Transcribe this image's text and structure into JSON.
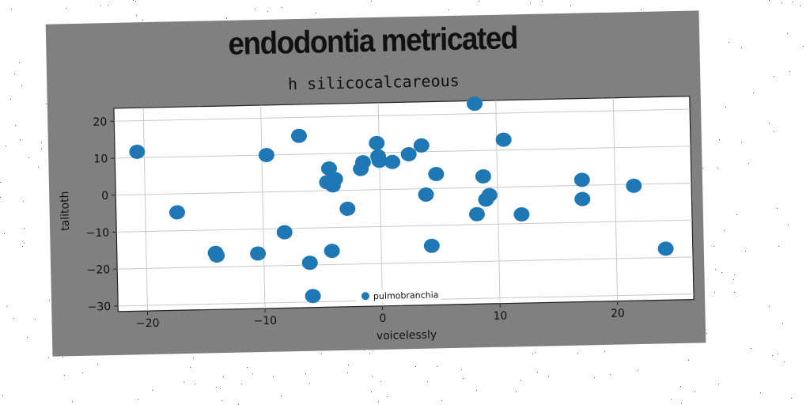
{
  "chart_data": {
    "type": "scatter",
    "title": "endodontia metricated",
    "subtitle": "h silicocalcareous",
    "xlabel": "voicelessly",
    "ylabel": "talitoth",
    "xlim": [
      -22.5,
      26.5
    ],
    "ylim": [
      -31.5,
      23.5
    ],
    "xticks": [
      -20,
      -10,
      0,
      10,
      20
    ],
    "xtick_labels": [
      "−20",
      "−10",
      "0",
      "10",
      "20"
    ],
    "yticks": [
      20,
      10,
      0,
      -10,
      -20,
      -30
    ],
    "ytick_labels": [
      "20",
      "10",
      "0",
      "−10",
      "−20",
      "−30"
    ],
    "grid": true,
    "legend_position": "lower-center",
    "marker_color": "#1f77b4",
    "series": [
      {
        "name": "pulmobranchia",
        "points": [
          {
            "x": -20.6,
            "y": 11.6
          },
          {
            "x": -17.3,
            "y": -5.0
          },
          {
            "x": -14.1,
            "y": -16.2
          },
          {
            "x": -14.0,
            "y": -16.9
          },
          {
            "x": -10.5,
            "y": -16.6
          },
          {
            "x": -9.6,
            "y": 10.0
          },
          {
            "x": -8.2,
            "y": -11.0
          },
          {
            "x": -6.8,
            "y": 15.0
          },
          {
            "x": -6.1,
            "y": -19.4
          },
          {
            "x": -5.9,
            "y": -28.4
          },
          {
            "x": -4.5,
            "y": 2.3
          },
          {
            "x": -4.3,
            "y": 6.0
          },
          {
            "x": -4.0,
            "y": 1.4
          },
          {
            "x": -3.8,
            "y": 3.1
          },
          {
            "x": -4.2,
            "y": -16.3
          },
          {
            "x": -2.8,
            "y": -5.0
          },
          {
            "x": -1.6,
            "y": 5.7
          },
          {
            "x": -1.4,
            "y": 7.5
          },
          {
            "x": -0.2,
            "y": 12.6
          },
          {
            "x": -0.1,
            "y": 9.0
          },
          {
            "x": 0.0,
            "y": 7.8
          },
          {
            "x": 1.1,
            "y": 7.4
          },
          {
            "x": 2.5,
            "y": 9.4
          },
          {
            "x": 3.6,
            "y": 11.7
          },
          {
            "x": 3.9,
            "y": -1.6
          },
          {
            "x": 4.3,
            "y": -15.5
          },
          {
            "x": 4.8,
            "y": 3.9
          },
          {
            "x": 8.2,
            "y": 22.7
          },
          {
            "x": 8.2,
            "y": -7.2
          },
          {
            "x": 8.8,
            "y": 3.0
          },
          {
            "x": 9.0,
            "y": -3.3
          },
          {
            "x": 9.3,
            "y": -2.1
          },
          {
            "x": 10.6,
            "y": 12.8
          },
          {
            "x": 12.0,
            "y": -7.5
          },
          {
            "x": 17.2,
            "y": 1.5
          },
          {
            "x": 17.2,
            "y": -3.7
          },
          {
            "x": 21.6,
            "y": -0.4
          },
          {
            "x": 24.2,
            "y": -17.6
          }
        ]
      }
    ]
  }
}
